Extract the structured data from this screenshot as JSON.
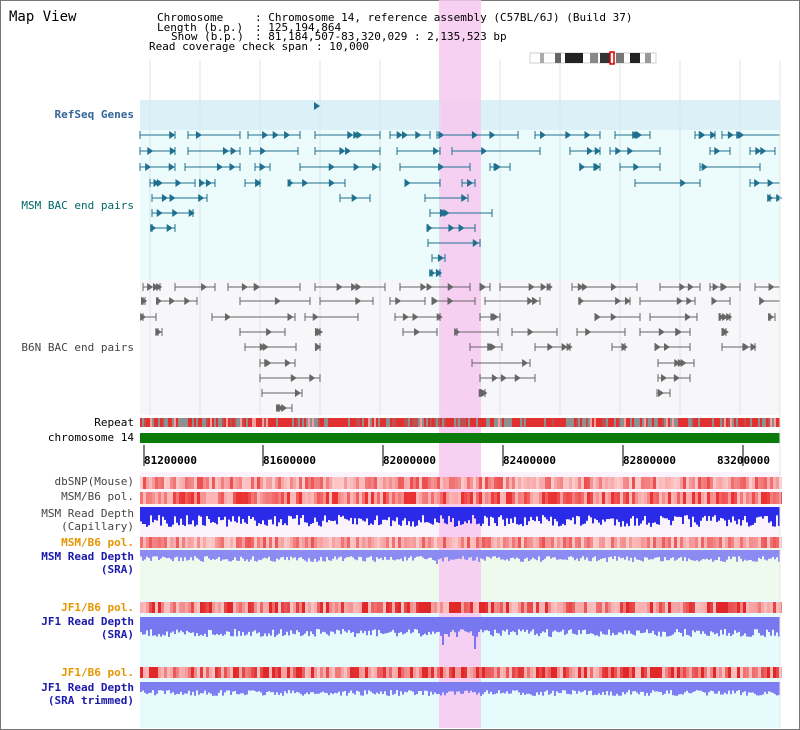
{
  "title": "Map View",
  "header": {
    "chromosome_key": "Chromosome",
    "chromosome_val": ": Chromosome 14, reference assembly (C57BL/6J) (Build 37)",
    "length_key": "Length (b.p.)",
    "length_val": ": 125,194,864",
    "show_key": "Show (b.p.)",
    "show_val": ": 81,184,507-83,320,029 : 2,135,523 bp",
    "coverage_key": "Read coverage check span",
    "coverage_val": ": 10,000"
  },
  "track_labels": {
    "refseq": "RefSeq Genes",
    "msm_bac": "MSM BAC end pairs",
    "b6n_bac": "B6N BAC end pairs",
    "repeat": "Repeat",
    "chromosome": "chromosome 14",
    "dbsnp": "dbSNP(Mouse)",
    "msm_b6_pol_1": "MSM/B6 pol.",
    "msm_depth_cap_1": "MSM Read Depth",
    "msm_depth_cap_2": "(Capillary)",
    "msm_b6_pol_2": "MSM/B6 pol.",
    "msm_depth_sra_1": "MSM Read Depth",
    "msm_depth_sra_2": "(SRA)",
    "jf1_b6_pol_1": "JF1/B6 pol.",
    "jf1_depth_sra_1": "JF1 Read Depth",
    "jf1_depth_sra_2": "(SRA)",
    "jf1_b6_pol_2": "JF1/B6 pol.",
    "jf1_depth_trim_1": "JF1 Read Depth",
    "jf1_depth_trim_2": "(SRA trimmed)"
  },
  "axis_ticks": [
    "81200000",
    "81600000",
    "82000000",
    "82400000",
    "82800000",
    "83200000"
  ],
  "colors": {
    "refseq_label": "#336699",
    "msm_label": "#006666",
    "b6n_label": "#444444",
    "pol_label": "#e69500",
    "depth_label": "#1a1aaa",
    "highlight": "#f7c8f0",
    "chromosome_bar": "#0a7a0a"
  }
}
